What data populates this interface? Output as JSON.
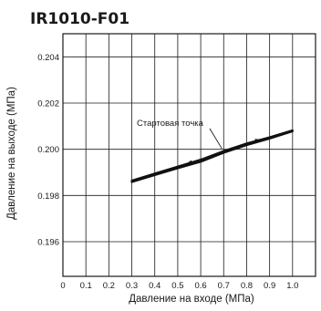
{
  "chart_data": {
    "type": "line",
    "title": "IR1010-F01",
    "xlabel": "Давление на входе (МПа)",
    "ylabel": "Давление на выходе (МПа)",
    "xlim": [
      0,
      1.1
    ],
    "ylim": [
      0.1945,
      0.205
    ],
    "x_ticks": [
      "0",
      "0.1",
      "0.2",
      "0.3",
      "0.4",
      "0.5",
      "0.6",
      "0.7",
      "0.8",
      "0.9",
      "1.0"
    ],
    "y_ticks": [
      "0.196",
      "0.198",
      "0.200",
      "0.202",
      "0.204"
    ],
    "grid": true,
    "series": [
      {
        "x": [
          0.3,
          0.4,
          0.5,
          0.6,
          0.7,
          0.8,
          0.9,
          1.0
        ],
        "y": [
          0.19864,
          0.19895,
          0.19925,
          0.19955,
          0.19992,
          0.20025,
          0.20052,
          0.20082
        ]
      },
      {
        "x": [
          0.3,
          0.4,
          0.5,
          0.6,
          0.7,
          0.8,
          0.9,
          1.0
        ],
        "y": [
          0.19858,
          0.19888,
          0.19918,
          0.19946,
          0.19985,
          0.20018,
          0.20046,
          0.20078
        ]
      }
    ],
    "annotations": [
      {
        "text": "Стартовая точка",
        "x": 0.7,
        "y": 0.19995
      }
    ]
  }
}
